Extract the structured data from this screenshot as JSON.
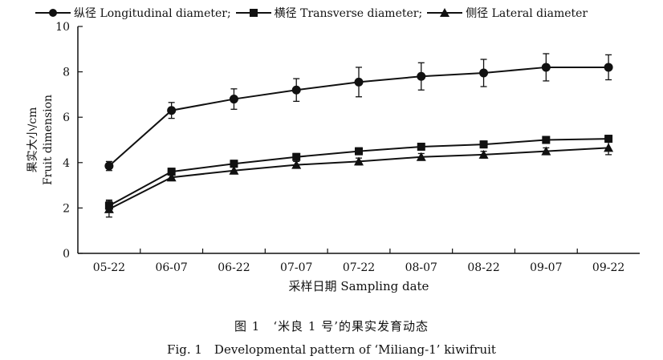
{
  "chart_data": {
    "type": "line",
    "categories": [
      "05-22",
      "06-07",
      "06-22",
      "07-07",
      "07-22",
      "08-07",
      "08-22",
      "09-07",
      "09-22"
    ],
    "series": [
      {
        "name": "纵径 Longitudinal diameter;",
        "marker": "circle",
        "values": [
          3.85,
          6.3,
          6.8,
          7.2,
          7.55,
          7.8,
          7.95,
          8.2,
          8.2
        ],
        "errors": [
          0.2,
          0.35,
          0.45,
          0.5,
          0.65,
          0.6,
          0.6,
          0.6,
          0.55
        ]
      },
      {
        "name": "横径 Transverse diameter;",
        "marker": "square",
        "values": [
          2.1,
          3.6,
          3.95,
          4.25,
          4.5,
          4.7,
          4.8,
          5.0,
          5.05
        ],
        "errors": [
          0.25,
          0.15,
          0.15,
          0.15,
          0.15,
          0.15,
          0.15,
          0.15,
          0.15
        ]
      },
      {
        "name": "侧径 Lateral diameter",
        "marker": "triangle",
        "values": [
          1.95,
          3.35,
          3.65,
          3.9,
          4.05,
          4.25,
          4.35,
          4.5,
          4.65
        ],
        "errors": [
          0.35,
          0.15,
          0.15,
          0.15,
          0.15,
          0.15,
          0.15,
          0.15,
          0.3
        ]
      }
    ],
    "ylim": [
      0,
      10
    ],
    "yticks": [
      0,
      2,
      4,
      6,
      8,
      10
    ],
    "xlabel": "采样日期 Sampling date",
    "ylabel_cn": "果实大小/cm",
    "ylabel_en": "Fruit dimension",
    "grid": false,
    "legend_position": "top"
  },
  "caption": {
    "cn": "图 1　‘米良 1 号’的果实发育动态",
    "en": "Fig. 1　Developmental pattern of ‘Miliang-1’ kiwifruit"
  }
}
